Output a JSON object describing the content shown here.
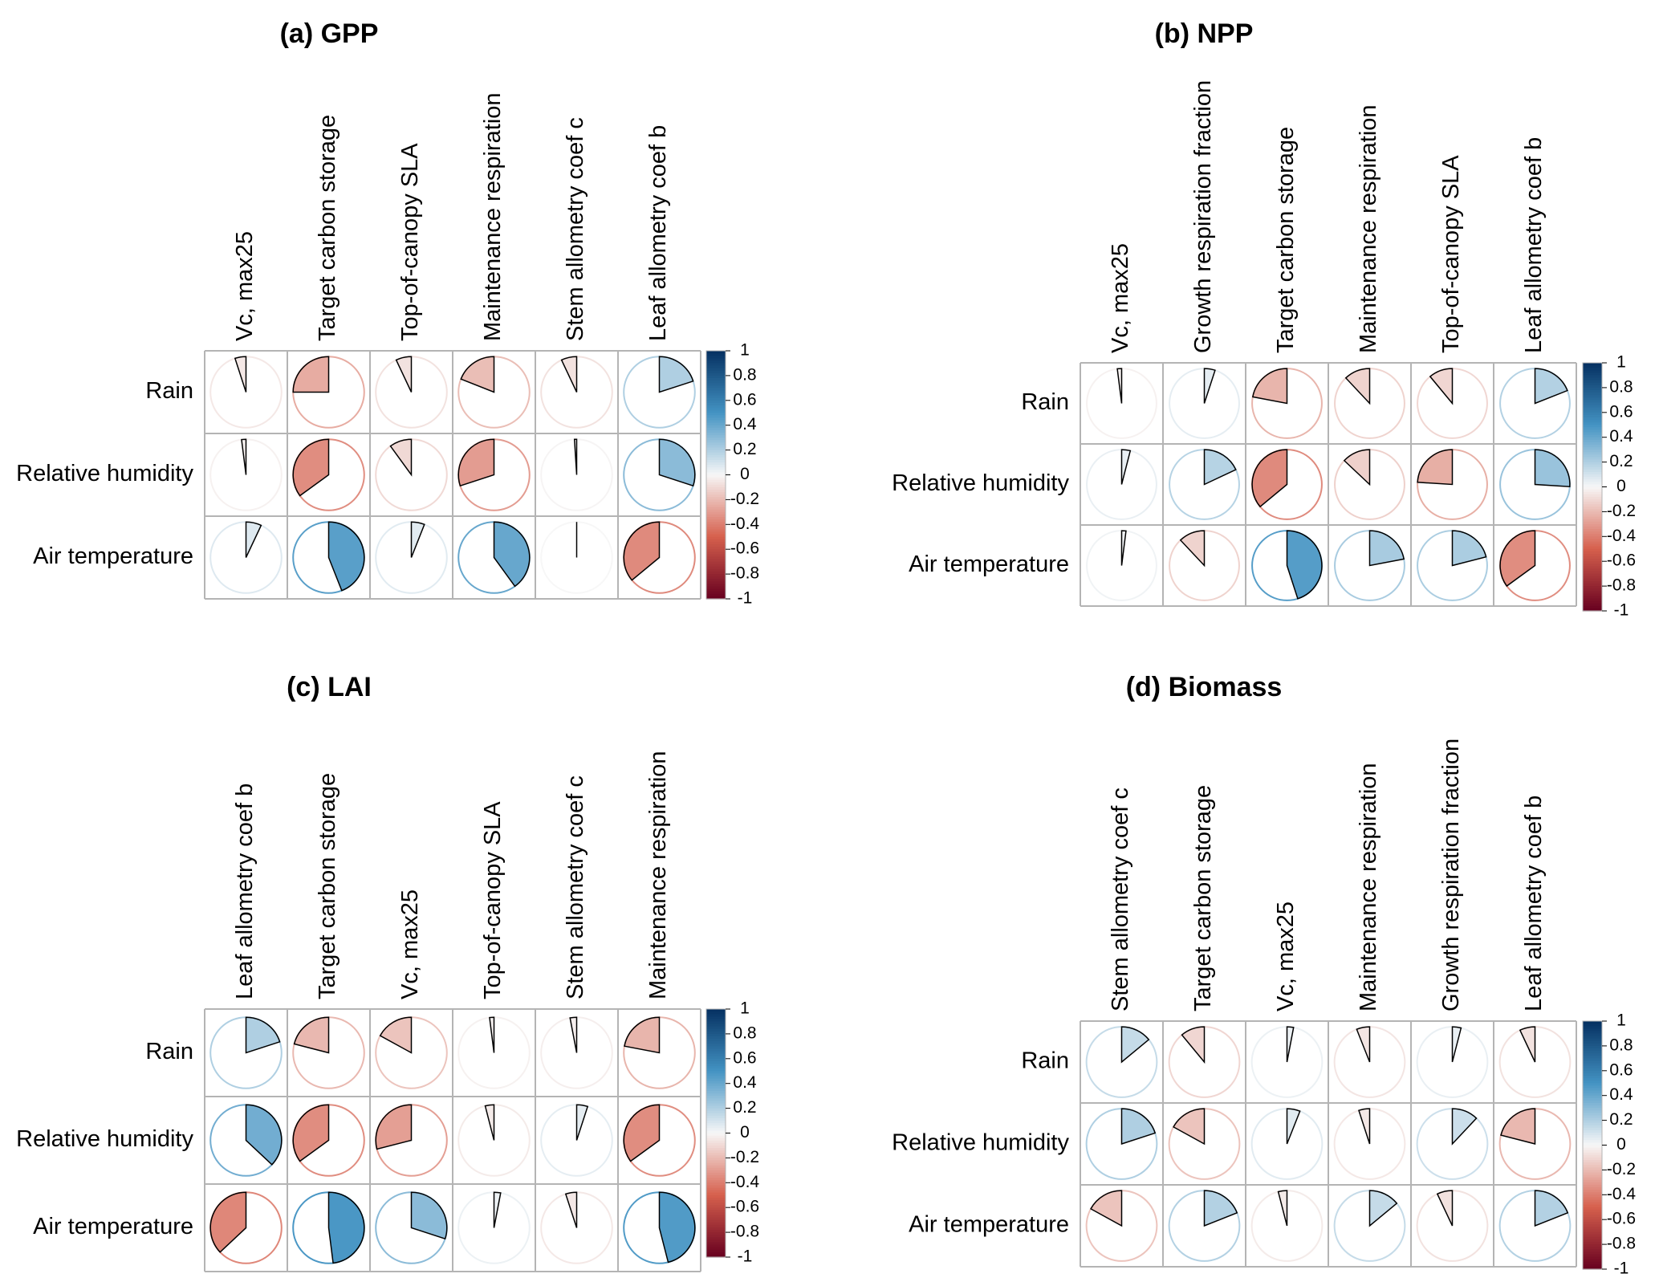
{
  "colorbar": {
    "ticks": [
      "1",
      "0.8",
      "0.6",
      "0.4",
      "0.2",
      "0",
      "-0.2",
      "-0.4",
      "-0.6",
      "-0.8",
      "-1"
    ],
    "range": [
      -1,
      1
    ]
  },
  "colors": {
    "negative_strong": "#67001f",
    "negative_mid": "#d6604d",
    "neutral": "#f7f7f7",
    "positive_mid": "#4393c3",
    "positive_strong": "#053061",
    "grid": "#b4b4b4"
  },
  "chart_data": [
    {
      "type": "heatmap",
      "title": "(a) GPP",
      "rows": [
        "Rain",
        "Relative humidity",
        "Air temperature"
      ],
      "columns": [
        "Vc, max25",
        "Target carbon storage",
        "Top-of-canopy SLA",
        "Maintenance respiration",
        "Stem allometry coef c",
        "Leaf allometry coef b"
      ],
      "values": [
        [
          -0.05,
          -0.25,
          -0.07,
          -0.19,
          -0.07,
          0.2
        ],
        [
          -0.02,
          -0.35,
          -0.1,
          -0.3,
          -0.01,
          0.3
        ],
        [
          0.07,
          0.44,
          0.06,
          0.4,
          0.0,
          -0.36
        ]
      ],
      "ylim": [
        -1,
        1
      ]
    },
    {
      "type": "heatmap",
      "title": "(b) NPP",
      "rows": [
        "Rain",
        "Relative humidity",
        "Air temperature"
      ],
      "columns": [
        "Vc, max25",
        "Growth respiration fraction",
        "Target carbon storage",
        "Maintenance respiration",
        "Top-of-canopy SLA",
        "Leaf allometry coef b"
      ],
      "values": [
        [
          -0.02,
          0.05,
          -0.22,
          -0.12,
          -0.11,
          0.19
        ],
        [
          0.04,
          0.18,
          -0.36,
          -0.13,
          -0.24,
          0.26
        ],
        [
          0.02,
          -0.12,
          0.45,
          0.22,
          0.21,
          -0.35
        ]
      ],
      "ylim": [
        -1,
        1
      ]
    },
    {
      "type": "heatmap",
      "title": "(c) LAI",
      "rows": [
        "Rain",
        "Relative humidity",
        "Air temperature"
      ],
      "columns": [
        "Leaf allometry coef b",
        "Target carbon storage",
        "Vc, max25",
        "Top-of-canopy SLA",
        "Stem allometry coef c",
        "Maintenance respiration"
      ],
      "values": [
        [
          0.2,
          -0.21,
          -0.17,
          -0.02,
          -0.03,
          -0.22
        ],
        [
          0.37,
          -0.35,
          -0.29,
          -0.04,
          0.05,
          -0.35
        ],
        [
          -0.37,
          0.48,
          0.3,
          0.03,
          -0.05,
          0.46
        ]
      ],
      "ylim": [
        -1,
        1
      ]
    },
    {
      "type": "heatmap",
      "title": "(d) Biomass",
      "rows": [
        "Rain",
        "Relative humidity",
        "Air temperature"
      ],
      "columns": [
        "Stem allometry coef c",
        "Target carbon storage",
        "Vc, max25",
        "Maintenance respiration",
        "Growth respiration fraction",
        "Leaf allometry coef b"
      ],
      "values": [
        [
          0.14,
          -0.11,
          0.03,
          -0.06,
          0.04,
          -0.07
        ],
        [
          0.2,
          -0.17,
          0.06,
          -0.05,
          0.12,
          -0.21
        ],
        [
          -0.17,
          0.19,
          -0.04,
          0.14,
          -0.07,
          0.19
        ]
      ],
      "ylim": [
        -1,
        1
      ]
    }
  ]
}
